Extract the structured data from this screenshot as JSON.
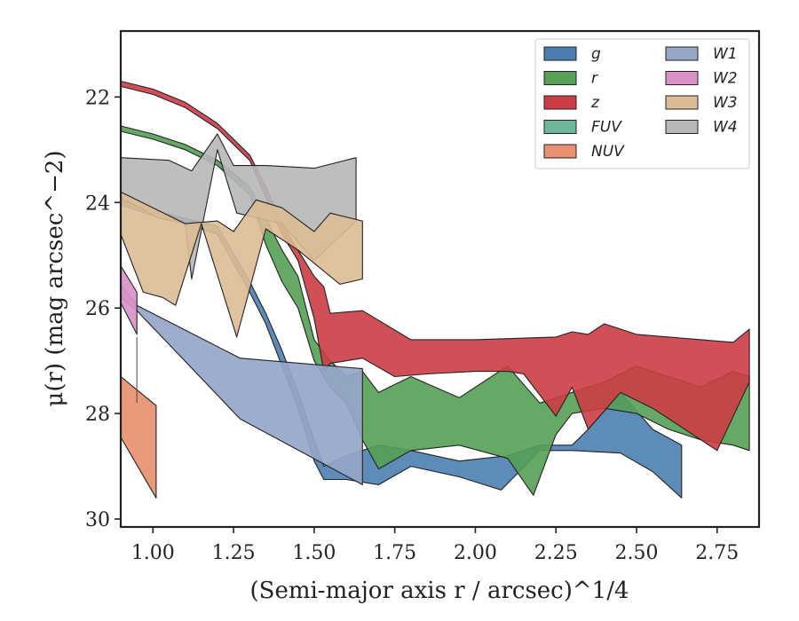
{
  "chart_data": {
    "type": "area",
    "xlabel": "(Semi-major axis r / arcsec)^1/4",
    "ylabel": "μ(r) (mag arcsec^−2)",
    "xlim": [
      0.9,
      2.88
    ],
    "ylim": [
      30.15,
      20.75
    ],
    "y_inverted": true,
    "xticks": [
      "1.00",
      "1.25",
      "1.50",
      "1.75",
      "2.00",
      "2.25",
      "2.50",
      "2.75"
    ],
    "xtick_values": [
      1.0,
      1.25,
      1.5,
      1.75,
      2.0,
      2.25,
      2.5,
      2.75
    ],
    "yticks": [
      "22",
      "24",
      "26",
      "28",
      "30"
    ],
    "ytick_values": [
      22,
      24,
      26,
      28,
      30
    ],
    "grid": false,
    "legend_position": "top-right",
    "series": [
      {
        "name": "g",
        "color": "#4c7fb0",
        "upper": [
          [
            0.9,
            23.95
          ],
          [
            1.0,
            24.15
          ],
          [
            1.1,
            24.3
          ],
          [
            1.2,
            24.45
          ],
          [
            1.3,
            25.5
          ],
          [
            1.35,
            26.1
          ],
          [
            1.4,
            26.8
          ],
          [
            1.45,
            27.6
          ],
          [
            1.5,
            28.5
          ],
          [
            1.53,
            29.0
          ],
          [
            1.6,
            28.8
          ],
          [
            1.7,
            28.6
          ],
          [
            1.8,
            28.7
          ],
          [
            1.95,
            28.9
          ],
          [
            2.1,
            28.8
          ],
          [
            2.2,
            28.6
          ],
          [
            2.3,
            28.6
          ],
          [
            2.35,
            28.3
          ],
          [
            2.45,
            27.6
          ],
          [
            2.55,
            28.3
          ],
          [
            2.64,
            28.6
          ]
        ],
        "lower": [
          [
            0.9,
            24.05
          ],
          [
            1.0,
            24.25
          ],
          [
            1.1,
            24.4
          ],
          [
            1.2,
            24.6
          ],
          [
            1.3,
            25.7
          ],
          [
            1.35,
            26.3
          ],
          [
            1.4,
            27.1
          ],
          [
            1.45,
            27.9
          ],
          [
            1.5,
            28.9
          ],
          [
            1.53,
            29.25
          ],
          [
            1.6,
            29.25
          ],
          [
            1.7,
            29.35
          ],
          [
            1.8,
            29.0
          ],
          [
            1.95,
            29.2
          ],
          [
            2.08,
            29.45
          ],
          [
            2.2,
            28.7
          ],
          [
            2.3,
            28.7
          ],
          [
            2.45,
            28.75
          ],
          [
            2.55,
            29.1
          ],
          [
            2.64,
            29.6
          ]
        ]
      },
      {
        "name": "r",
        "color": "#55a055",
        "upper": [
          [
            0.9,
            22.55
          ],
          [
            1.0,
            22.7
          ],
          [
            1.1,
            22.9
          ],
          [
            1.2,
            23.2
          ],
          [
            1.3,
            23.7
          ],
          [
            1.35,
            24.3
          ],
          [
            1.4,
            24.9
          ],
          [
            1.45,
            25.4
          ],
          [
            1.5,
            26.6
          ],
          [
            1.55,
            27.0
          ],
          [
            1.6,
            27.3
          ],
          [
            1.65,
            27.2
          ],
          [
            1.7,
            27.6
          ],
          [
            1.8,
            27.3
          ],
          [
            1.95,
            27.7
          ],
          [
            2.1,
            27.1
          ],
          [
            2.2,
            27.8
          ],
          [
            2.3,
            27.6
          ],
          [
            2.4,
            27.4
          ],
          [
            2.5,
            27.1
          ],
          [
            2.6,
            27.3
          ],
          [
            2.7,
            27.5
          ],
          [
            2.8,
            27.2
          ],
          [
            2.85,
            27.3
          ]
        ],
        "lower": [
          [
            0.9,
            22.65
          ],
          [
            1.0,
            22.8
          ],
          [
            1.1,
            23.0
          ],
          [
            1.2,
            23.3
          ],
          [
            1.3,
            23.85
          ],
          [
            1.35,
            24.8
          ],
          [
            1.4,
            25.5
          ],
          [
            1.45,
            26.0
          ],
          [
            1.5,
            27.0
          ],
          [
            1.55,
            27.5
          ],
          [
            1.6,
            27.8
          ],
          [
            1.65,
            28.5
          ],
          [
            1.7,
            29.05
          ],
          [
            1.8,
            28.7
          ],
          [
            1.95,
            28.6
          ],
          [
            2.1,
            28.85
          ],
          [
            2.18,
            29.55
          ],
          [
            2.25,
            28.4
          ],
          [
            2.3,
            28.0
          ],
          [
            2.4,
            27.9
          ],
          [
            2.5,
            28.0
          ],
          [
            2.6,
            28.3
          ],
          [
            2.7,
            28.5
          ],
          [
            2.8,
            28.6
          ],
          [
            2.85,
            28.7
          ]
        ]
      },
      {
        "name": "z",
        "color": "#cc3c44",
        "upper": [
          [
            0.9,
            21.7
          ],
          [
            1.0,
            21.85
          ],
          [
            1.1,
            22.1
          ],
          [
            1.2,
            22.5
          ],
          [
            1.3,
            23.1
          ],
          [
            1.35,
            23.7
          ],
          [
            1.4,
            24.4
          ],
          [
            1.45,
            24.9
          ],
          [
            1.5,
            25.4
          ],
          [
            1.53,
            25.6
          ],
          [
            1.55,
            26.1
          ],
          [
            1.65,
            26.05
          ],
          [
            1.8,
            26.6
          ],
          [
            2.0,
            26.6
          ],
          [
            2.25,
            26.55
          ],
          [
            2.3,
            26.45
          ],
          [
            2.35,
            26.5
          ],
          [
            2.4,
            26.3
          ],
          [
            2.5,
            26.5
          ],
          [
            2.6,
            26.55
          ],
          [
            2.7,
            26.6
          ],
          [
            2.8,
            26.65
          ],
          [
            2.85,
            26.4
          ]
        ],
        "lower": [
          [
            0.9,
            21.8
          ],
          [
            1.0,
            21.95
          ],
          [
            1.1,
            22.2
          ],
          [
            1.2,
            22.6
          ],
          [
            1.3,
            23.2
          ],
          [
            1.35,
            23.9
          ],
          [
            1.4,
            24.6
          ],
          [
            1.45,
            25.1
          ],
          [
            1.5,
            26.2
          ],
          [
            1.53,
            27.2
          ],
          [
            1.55,
            27.05
          ],
          [
            1.65,
            26.95
          ],
          [
            1.75,
            27.3
          ],
          [
            1.85,
            27.25
          ],
          [
            2.0,
            27.2
          ],
          [
            2.1,
            27.2
          ],
          [
            2.15,
            27.25
          ],
          [
            2.25,
            28.05
          ],
          [
            2.3,
            27.5
          ],
          [
            2.35,
            28.3
          ],
          [
            2.45,
            27.6
          ],
          [
            2.55,
            27.9
          ],
          [
            2.65,
            28.3
          ],
          [
            2.75,
            28.7
          ],
          [
            2.85,
            27.4
          ]
        ]
      },
      {
        "name": "FUV",
        "color": "#6fb69a",
        "upper": [],
        "lower": []
      },
      {
        "name": "NUV",
        "color": "#e8906f",
        "upper": [
          [
            0.9,
            27.3
          ],
          [
            1.01,
            27.85
          ]
        ],
        "lower": [
          [
            0.9,
            28.45
          ],
          [
            1.01,
            29.6
          ]
        ]
      },
      {
        "name": "W1",
        "color": "#96a6c9",
        "upper": [
          [
            0.9,
            25.55
          ],
          [
            0.95,
            25.95
          ],
          [
            1.27,
            26.95
          ],
          [
            1.65,
            27.15
          ]
        ],
        "lower": [
          [
            0.9,
            25.8
          ],
          [
            0.95,
            26.05
          ],
          [
            1.27,
            28.1
          ],
          [
            1.65,
            29.35
          ]
        ]
      },
      {
        "name": "W2",
        "color": "#d993c7",
        "upper": [
          [
            0.9,
            25.2
          ],
          [
            0.95,
            25.7
          ]
        ],
        "lower": [
          [
            0.9,
            25.9
          ],
          [
            0.95,
            26.5
          ]
        ]
      },
      {
        "name": "W3",
        "color": "#dcbb94",
        "upper": [
          [
            0.9,
            23.8
          ],
          [
            1.0,
            24.1
          ],
          [
            1.1,
            24.4
          ],
          [
            1.2,
            24.35
          ],
          [
            1.25,
            24.55
          ],
          [
            1.32,
            23.95
          ],
          [
            1.4,
            24.1
          ],
          [
            1.5,
            24.55
          ],
          [
            1.55,
            24.2
          ],
          [
            1.65,
            24.35
          ]
        ],
        "lower": [
          [
            0.9,
            24.6
          ],
          [
            0.97,
            25.7
          ],
          [
            1.03,
            25.8
          ],
          [
            1.07,
            25.95
          ],
          [
            1.15,
            24.4
          ],
          [
            1.26,
            26.55
          ],
          [
            1.35,
            24.5
          ],
          [
            1.45,
            24.9
          ],
          [
            1.58,
            25.55
          ],
          [
            1.65,
            25.45
          ]
        ]
      },
      {
        "name": "W4",
        "color": "#b7b7b7",
        "upper": [
          [
            0.9,
            23.15
          ],
          [
            1.05,
            23.2
          ],
          [
            1.12,
            23.4
          ],
          [
            1.2,
            22.7
          ],
          [
            1.25,
            23.3
          ],
          [
            1.35,
            23.3
          ],
          [
            1.5,
            23.35
          ],
          [
            1.63,
            23.15
          ]
        ],
        "lower": [
          [
            0.9,
            23.9
          ],
          [
            1.02,
            24.3
          ],
          [
            1.1,
            24.4
          ],
          [
            1.12,
            25.45
          ],
          [
            1.2,
            23.0
          ],
          [
            1.26,
            24.2
          ],
          [
            1.4,
            24.4
          ],
          [
            1.5,
            25.1
          ],
          [
            1.63,
            24.35
          ]
        ]
      }
    ]
  }
}
